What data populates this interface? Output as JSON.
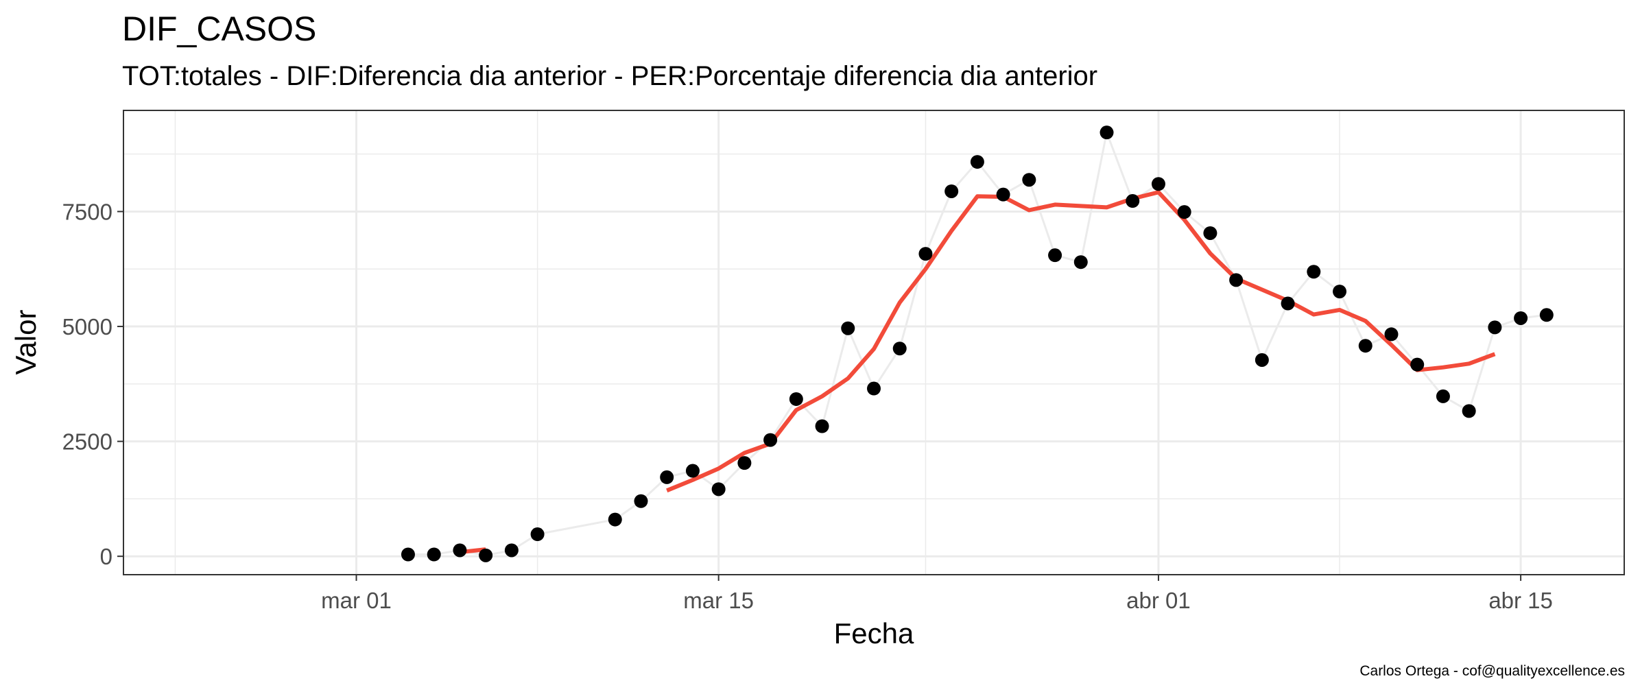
{
  "chart_data": {
    "type": "line",
    "title": "DIF_CASOS",
    "subtitle": "TOT:totales - DIF:Diferencia dia anterior - PER:Porcentaje diferencia dia anterior",
    "caption": "Carlos Ortega - cof@qualityexcellence.es",
    "xlabel": "Fecha",
    "ylabel": "Valor",
    "xlim": [
      "2020-02-21",
      "2020-04-19"
    ],
    "ylim": [
      -400,
      9700
    ],
    "x_ticks": [
      {
        "date": "2020-03-01",
        "label": "mar 01"
      },
      {
        "date": "2020-03-15",
        "label": "mar 15"
      },
      {
        "date": "2020-04-01",
        "label": "abr 01"
      },
      {
        "date": "2020-04-15",
        "label": "abr 15"
      }
    ],
    "x_minor_ticks": [
      "2020-02-23",
      "2020-03-08",
      "2020-03-23",
      "2020-04-08"
    ],
    "y_ticks": [
      0,
      2500,
      5000,
      7500
    ],
    "y_minor_ticks": [
      1250,
      3750,
      6250,
      8750
    ],
    "grid": true,
    "legend": "none",
    "colors": {
      "points": "#000000",
      "connector": "#ebebeb",
      "smooth": "#f24b3a",
      "panel_border": "#333333",
      "grid": "#ebebeb"
    },
    "series": [
      {
        "style": "points+line",
        "x": [
          "2020-03-03",
          "2020-03-04",
          "2020-03-05",
          "2020-03-06",
          "2020-03-07",
          "2020-03-08",
          "2020-03-11",
          "2020-03-12",
          "2020-03-13",
          "2020-03-14",
          "2020-03-15",
          "2020-03-16",
          "2020-03-17",
          "2020-03-18",
          "2020-03-19",
          "2020-03-20",
          "2020-03-21",
          "2020-03-22",
          "2020-03-23",
          "2020-03-24",
          "2020-03-25",
          "2020-03-26",
          "2020-03-27",
          "2020-03-28",
          "2020-03-29",
          "2020-03-30",
          "2020-03-31",
          "2020-04-01",
          "2020-04-02",
          "2020-04-03",
          "2020-04-04",
          "2020-04-05",
          "2020-04-06",
          "2020-04-07",
          "2020-04-08",
          "2020-04-09",
          "2020-04-10",
          "2020-04-11",
          "2020-04-12",
          "2020-04-13",
          "2020-04-14",
          "2020-04-15",
          "2020-04-16"
        ],
        "values": [
          40,
          40,
          130,
          20,
          130,
          480,
          800,
          1200,
          1720,
          1860,
          1460,
          2030,
          2530,
          3420,
          2830,
          4960,
          3650,
          4520,
          6580,
          7940,
          8580,
          7870,
          8190,
          6550,
          6400,
          9220,
          7730,
          8100,
          7490,
          7030,
          6010,
          4270,
          5500,
          6190,
          5760,
          4580,
          4830,
          4170,
          3480,
          3160,
          4980,
          5180,
          5250
        ]
      },
      {
        "style": "line",
        "x": [
          "2020-03-05",
          "2020-03-06"
        ],
        "values": [
          90,
          150
        ]
      },
      {
        "style": "line",
        "x": [
          "2020-03-13",
          "2020-03-14",
          "2020-03-15",
          "2020-03-16",
          "2020-03-17",
          "2020-03-18",
          "2020-03-19",
          "2020-03-20",
          "2020-03-21",
          "2020-03-22",
          "2020-03-23",
          "2020-03-24",
          "2020-03-25",
          "2020-03-26",
          "2020-03-27",
          "2020-03-28",
          "2020-03-29",
          "2020-03-30",
          "2020-03-31",
          "2020-04-01",
          "2020-04-02",
          "2020-04-03",
          "2020-04-04",
          "2020-04-05",
          "2020-04-06",
          "2020-04-07",
          "2020-04-08",
          "2020-04-09",
          "2020-04-10",
          "2020-04-11",
          "2020-04-12",
          "2020-04-13",
          "2020-04-14"
        ],
        "values": [
          1430,
          1660,
          1910,
          2250,
          2450,
          3180,
          3480,
          3870,
          4510,
          5520,
          6250,
          7080,
          7830,
          7820,
          7530,
          7650,
          7620,
          7590,
          7780,
          7920,
          7320,
          6590,
          6040,
          5800,
          5560,
          5260,
          5360,
          5120,
          4600,
          4050,
          4110,
          4190,
          4400
        ]
      }
    ]
  }
}
